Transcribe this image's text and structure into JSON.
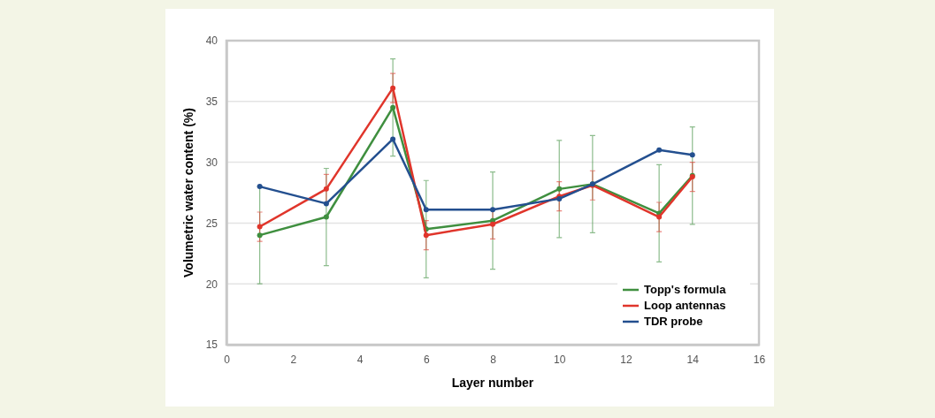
{
  "chart_data": {
    "type": "line",
    "xlabel": "Layer number",
    "ylabel": "Volumetric water content (%)",
    "x": [
      1,
      3,
      5,
      6,
      8,
      10,
      11,
      13,
      14
    ],
    "series": [
      {
        "name": "Topp's formula",
        "color": "#3f8f3f",
        "values": [
          24,
          25.5,
          34.5,
          24.5,
          25.2,
          27.8,
          28.2,
          25.8,
          28.9
        ],
        "errors": [
          4,
          4,
          4,
          4,
          4,
          4,
          4,
          4,
          4
        ]
      },
      {
        "name": "Loop antennas",
        "color": "#e0352b",
        "values": [
          24.7,
          27.8,
          36.1,
          24.0,
          24.9,
          27.2,
          28.1,
          25.5,
          28.8
        ],
        "errors": [
          1.2,
          1.2,
          1.2,
          1.2,
          1.2,
          1.2,
          1.2,
          1.2,
          1.2
        ]
      },
      {
        "name": "TDR probe",
        "color": "#234f8f",
        "values": [
          28.0,
          26.6,
          31.9,
          26.1,
          26.1,
          27.0,
          28.2,
          31.0,
          30.6
        ]
      }
    ],
    "xlim": [
      0,
      16
    ],
    "xticks": [
      0,
      2,
      4,
      6,
      8,
      10,
      12,
      14,
      16
    ],
    "ylim": [
      15,
      40
    ],
    "yticks": [
      15,
      20,
      25,
      30,
      35,
      40
    ],
    "grid": "y",
    "legend": "bottom right",
    "marker": "circle",
    "line_style": "solid"
  }
}
